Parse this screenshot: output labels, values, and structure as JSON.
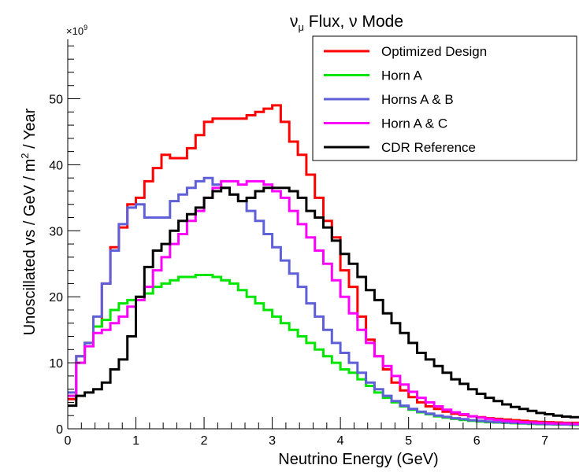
{
  "chart_data": {
    "type": "line",
    "title": "ν",
    "title_sub": "μ",
    "title_rest": " Flux, ν Mode",
    "xlabel": "Neutrino Energy (GeV)",
    "ylabel_pre": "Unoscillated vs /  GeV / m",
    "ylabel_sup": "2",
    "ylabel_post": " / Year",
    "multiplier_base": "×10",
    "multiplier_exp": "9",
    "xlim": [
      0,
      7.5
    ],
    "ylim": [
      0,
      59
    ],
    "xticks": [
      "0",
      "1",
      "2",
      "3",
      "4",
      "5",
      "6",
      "7"
    ],
    "yticks": [
      "0",
      "10",
      "20",
      "30",
      "40",
      "50"
    ],
    "legend_position": "top-right",
    "bin_width": 0.125,
    "series": [
      {
        "name": "Optimized Design",
        "color": "#ff0000",
        "values": [
          4.5,
          11,
          13,
          15.5,
          22,
          27.5,
          30.5,
          34,
          35,
          37.5,
          39.5,
          41.5,
          41,
          41,
          42.5,
          44.5,
          46.5,
          47,
          47,
          47,
          47,
          47.5,
          48,
          48.5,
          49,
          46.5,
          43.5,
          41.5,
          38.5,
          35,
          31.5,
          29,
          24,
          21.5,
          17,
          13.5,
          11,
          9,
          7,
          5.8,
          4.8,
          4,
          3.4,
          3,
          2.6,
          2.3,
          2.1,
          1.9,
          1.75,
          1.6,
          1.5,
          1.4,
          1.3,
          1.2,
          1.1,
          1.05,
          1,
          0.95,
          0.9,
          0.9
        ]
      },
      {
        "name": "Horn A",
        "color": "#00e600",
        "values": [
          5,
          10,
          13,
          15.5,
          16.5,
          18,
          19,
          19.5,
          20,
          20.5,
          21.5,
          22,
          22.5,
          23,
          23,
          23.3,
          23.3,
          23,
          22.5,
          22,
          21,
          20,
          19,
          18,
          17,
          16,
          15,
          14,
          13,
          12,
          11,
          10,
          9,
          8.5,
          7.5,
          6.5,
          5.5,
          4.7,
          4,
          3.4,
          2.9,
          2.5,
          2.2,
          1.9,
          1.7,
          1.5,
          1.35,
          1.2,
          1.1,
          1,
          0.95,
          0.9,
          0.85,
          0.8,
          0.75,
          0.7,
          0.7,
          0.65,
          0.65,
          0.6
        ]
      },
      {
        "name": "Horns A & B",
        "color": "#5f5fd8",
        "values": [
          5.5,
          11,
          13,
          17,
          22,
          27,
          31,
          33.5,
          34,
          32,
          32,
          32,
          34.5,
          35.5,
          36.5,
          37.5,
          38,
          37,
          36.5,
          35.5,
          34.5,
          33,
          31.5,
          29.5,
          27.5,
          25.5,
          23.5,
          21.5,
          19,
          17,
          15,
          13,
          11.5,
          10,
          8.5,
          7,
          6,
          5,
          4.2,
          3.5,
          3,
          2.6,
          2.3,
          2,
          1.8,
          1.6,
          1.45,
          1.3,
          1.2,
          1.1,
          1,
          0.95,
          0.9,
          0.85,
          0.8,
          0.75,
          0.7,
          0.7,
          0.65,
          0.65
        ]
      },
      {
        "name": "Horn A & C",
        "color": "#ff00ff",
        "values": [
          5,
          10,
          12.5,
          14.5,
          15,
          16,
          17,
          18.5,
          19.5,
          21.5,
          24,
          26,
          28,
          29.5,
          31.5,
          33,
          35,
          36.5,
          37.5,
          37.5,
          37,
          37.5,
          37.5,
          37,
          36,
          35,
          33,
          31,
          29,
          27,
          25,
          22.5,
          20,
          17.5,
          15,
          13,
          11,
          9.5,
          8,
          6.7,
          5.6,
          4.7,
          4,
          3.4,
          2.9,
          2.5,
          2.2,
          1.9,
          1.7,
          1.5,
          1.35,
          1.2,
          1.1,
          1,
          0.95,
          0.9,
          0.85,
          0.8,
          0.8,
          0.75
        ]
      },
      {
        "name": "CDR Reference",
        "color": "#000000",
        "values": [
          3.5,
          5,
          5.5,
          6,
          7,
          9,
          10.5,
          14,
          20,
          24.5,
          27,
          28,
          30,
          31.5,
          32.5,
          33.5,
          35,
          36,
          36.5,
          35.5,
          34.5,
          35,
          36,
          36.5,
          36.5,
          36.5,
          36,
          35,
          33,
          32,
          30.5,
          28.5,
          26.5,
          25,
          23,
          21,
          19.5,
          17.5,
          16,
          14.5,
          13,
          11.5,
          10.5,
          9.5,
          8.5,
          7.5,
          6.8,
          6,
          5.3,
          4.7,
          4.2,
          3.7,
          3.3,
          3,
          2.7,
          2.4,
          2.2,
          2,
          1.85,
          1.75
        ]
      }
    ]
  }
}
